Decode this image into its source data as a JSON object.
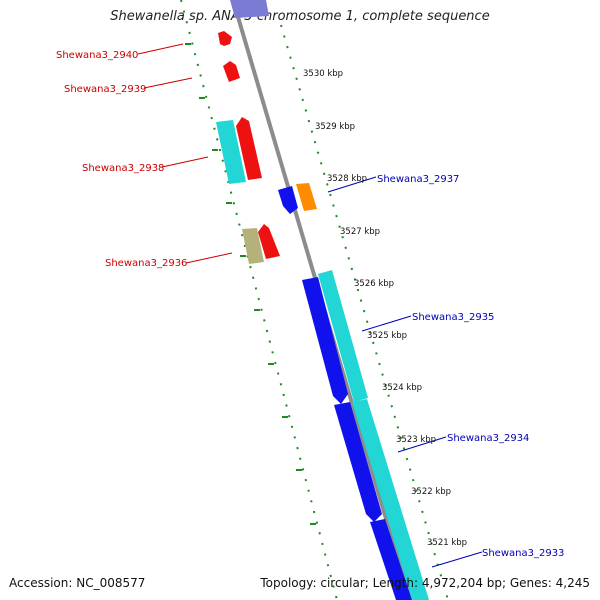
{
  "title": "Shewanella sp. ANA-3 chromosome 1, complete sequence",
  "footer": {
    "accession": "Accession: NC_008577",
    "summary": "Topology: circular; Length: 4,972,204 bp; Genes: 4,245"
  },
  "colors": {
    "ruler": "#1f8a1f",
    "backbone": "#8c8c8c",
    "forward_label": "#cc0000",
    "reverse_label": "#0000bb",
    "gene_red": "#ee1111",
    "gene_cyan": "#22d6d6",
    "gene_blue": "#1111ee",
    "gene_orange": "#ff8c00",
    "gene_khaki": "#b5b17a",
    "gene_lavender": "#7b7bd6"
  },
  "ruler_ticks": [
    "3530 kbp",
    "3529 kbp",
    "3528 kbp",
    "3527 kbp",
    "3526 kbp",
    "3525 kbp",
    "3524 kbp",
    "3523 kbp",
    "3522 kbp",
    "3521 kbp"
  ],
  "gene_labels": [
    {
      "text": "Shewana3_2940",
      "strand": "forward"
    },
    {
      "text": "Shewana3_2939",
      "strand": "forward"
    },
    {
      "text": "Shewana3_2938",
      "strand": "forward"
    },
    {
      "text": "Shewana3_2936",
      "strand": "forward"
    },
    {
      "text": "Shewana3_2937",
      "strand": "reverse"
    },
    {
      "text": "Shewana3_2935",
      "strand": "reverse"
    },
    {
      "text": "Shewana3_2934",
      "strand": "reverse"
    },
    {
      "text": "Shewana3_2933",
      "strand": "reverse"
    }
  ]
}
